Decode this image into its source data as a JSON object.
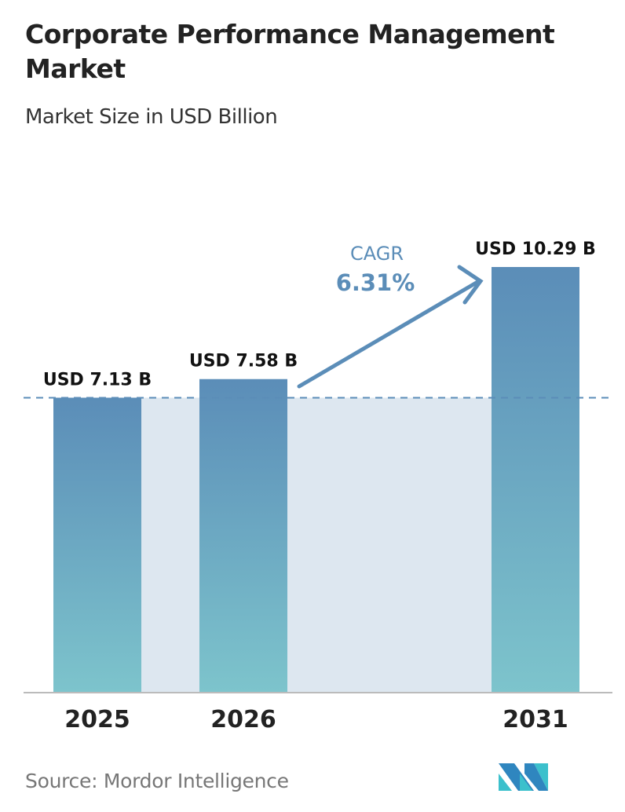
{
  "title": "Corporate Performance Management Market",
  "subtitle": "Market Size in USD Billion",
  "source": "Source:  Mordor Intelligence",
  "logo_text": "Mordor Intelligence",
  "colors": {
    "bar_top": "#5b8db8",
    "bar_bottom": "#7dc4cc",
    "band": "#dde7f0",
    "cagr": "#5b8db8",
    "logo_dark": "#2f86bf",
    "logo_light": "#3cc0cc"
  },
  "chart_data": {
    "type": "bar",
    "categories": [
      "2025",
      "2026",
      "2031"
    ],
    "values": [
      7.13,
      7.58,
      10.29
    ],
    "data_labels": [
      "USD 7.13 B",
      "USD 7.58 B",
      "USD 10.29 B"
    ],
    "ylim": [
      0,
      10.29
    ],
    "reference_line": 7.13,
    "grid": false,
    "annotation": {
      "label": "CAGR",
      "value": "6.31%"
    }
  }
}
